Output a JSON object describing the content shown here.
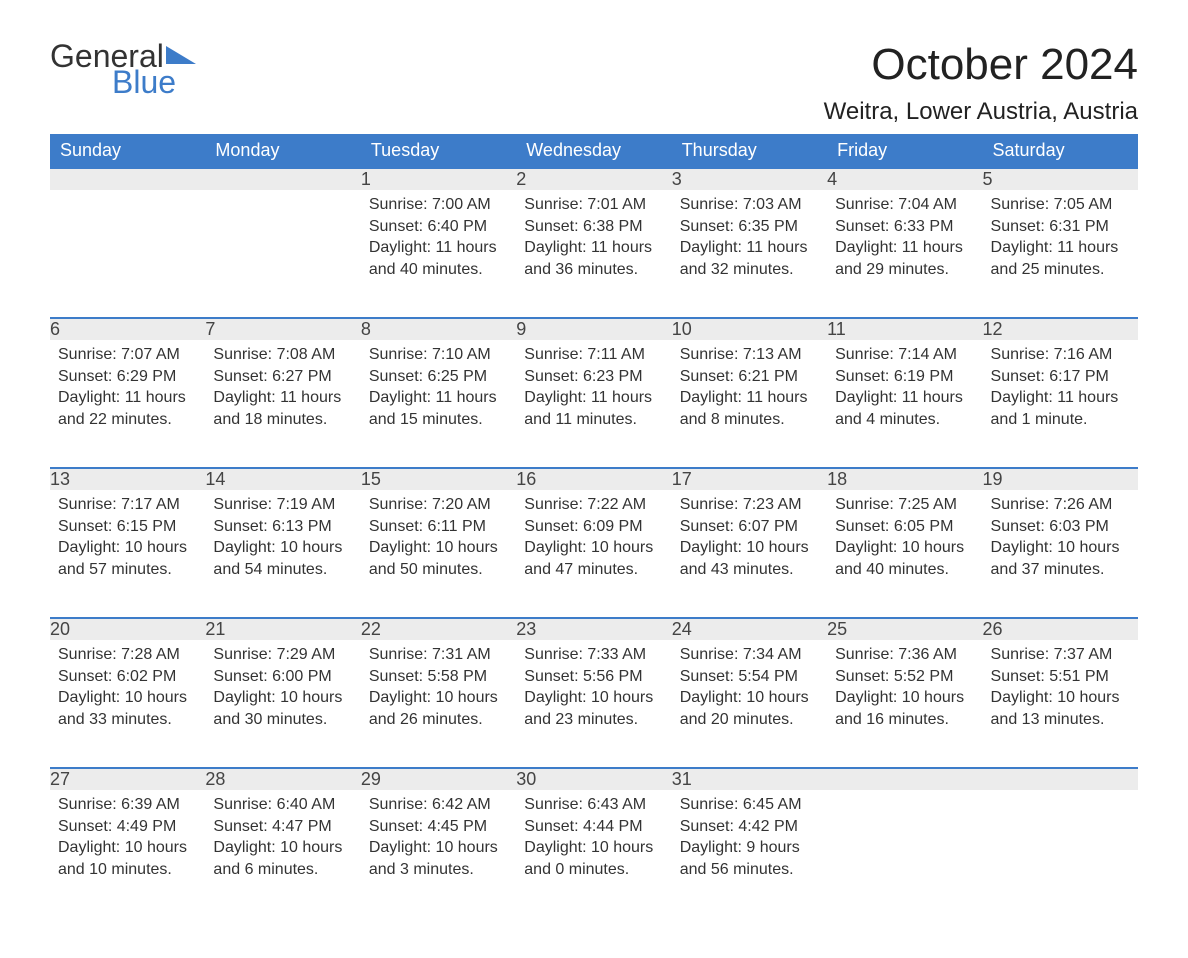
{
  "brand": {
    "line1": "General",
    "line2": "Blue",
    "text_color": "#333333",
    "accent_color": "#3d7cc9"
  },
  "title": "October 2024",
  "location": "Weitra, Lower Austria, Austria",
  "colors": {
    "header_bg": "#3d7cc9",
    "header_text": "#ffffff",
    "daynum_bg": "#ececec",
    "daynum_border": "#3d7cc9",
    "body_text": "#333333",
    "background": "#ffffff"
  },
  "typography": {
    "title_pt": 44,
    "location_pt": 24,
    "header_pt": 18,
    "cell_pt": 16
  },
  "weekdays": [
    "Sunday",
    "Monday",
    "Tuesday",
    "Wednesday",
    "Thursday",
    "Friday",
    "Saturday"
  ],
  "weeks": [
    [
      null,
      null,
      {
        "n": "1",
        "sunrise": "Sunrise: 7:00 AM",
        "sunset": "Sunset: 6:40 PM",
        "day1": "Daylight: 11 hours",
        "day2": "and 40 minutes."
      },
      {
        "n": "2",
        "sunrise": "Sunrise: 7:01 AM",
        "sunset": "Sunset: 6:38 PM",
        "day1": "Daylight: 11 hours",
        "day2": "and 36 minutes."
      },
      {
        "n": "3",
        "sunrise": "Sunrise: 7:03 AM",
        "sunset": "Sunset: 6:35 PM",
        "day1": "Daylight: 11 hours",
        "day2": "and 32 minutes."
      },
      {
        "n": "4",
        "sunrise": "Sunrise: 7:04 AM",
        "sunset": "Sunset: 6:33 PM",
        "day1": "Daylight: 11 hours",
        "day2": "and 29 minutes."
      },
      {
        "n": "5",
        "sunrise": "Sunrise: 7:05 AM",
        "sunset": "Sunset: 6:31 PM",
        "day1": "Daylight: 11 hours",
        "day2": "and 25 minutes."
      }
    ],
    [
      {
        "n": "6",
        "sunrise": "Sunrise: 7:07 AM",
        "sunset": "Sunset: 6:29 PM",
        "day1": "Daylight: 11 hours",
        "day2": "and 22 minutes."
      },
      {
        "n": "7",
        "sunrise": "Sunrise: 7:08 AM",
        "sunset": "Sunset: 6:27 PM",
        "day1": "Daylight: 11 hours",
        "day2": "and 18 minutes."
      },
      {
        "n": "8",
        "sunrise": "Sunrise: 7:10 AM",
        "sunset": "Sunset: 6:25 PM",
        "day1": "Daylight: 11 hours",
        "day2": "and 15 minutes."
      },
      {
        "n": "9",
        "sunrise": "Sunrise: 7:11 AM",
        "sunset": "Sunset: 6:23 PM",
        "day1": "Daylight: 11 hours",
        "day2": "and 11 minutes."
      },
      {
        "n": "10",
        "sunrise": "Sunrise: 7:13 AM",
        "sunset": "Sunset: 6:21 PM",
        "day1": "Daylight: 11 hours",
        "day2": "and 8 minutes."
      },
      {
        "n": "11",
        "sunrise": "Sunrise: 7:14 AM",
        "sunset": "Sunset: 6:19 PM",
        "day1": "Daylight: 11 hours",
        "day2": "and 4 minutes."
      },
      {
        "n": "12",
        "sunrise": "Sunrise: 7:16 AM",
        "sunset": "Sunset: 6:17 PM",
        "day1": "Daylight: 11 hours",
        "day2": "and 1 minute."
      }
    ],
    [
      {
        "n": "13",
        "sunrise": "Sunrise: 7:17 AM",
        "sunset": "Sunset: 6:15 PM",
        "day1": "Daylight: 10 hours",
        "day2": "and 57 minutes."
      },
      {
        "n": "14",
        "sunrise": "Sunrise: 7:19 AM",
        "sunset": "Sunset: 6:13 PM",
        "day1": "Daylight: 10 hours",
        "day2": "and 54 minutes."
      },
      {
        "n": "15",
        "sunrise": "Sunrise: 7:20 AM",
        "sunset": "Sunset: 6:11 PM",
        "day1": "Daylight: 10 hours",
        "day2": "and 50 minutes."
      },
      {
        "n": "16",
        "sunrise": "Sunrise: 7:22 AM",
        "sunset": "Sunset: 6:09 PM",
        "day1": "Daylight: 10 hours",
        "day2": "and 47 minutes."
      },
      {
        "n": "17",
        "sunrise": "Sunrise: 7:23 AM",
        "sunset": "Sunset: 6:07 PM",
        "day1": "Daylight: 10 hours",
        "day2": "and 43 minutes."
      },
      {
        "n": "18",
        "sunrise": "Sunrise: 7:25 AM",
        "sunset": "Sunset: 6:05 PM",
        "day1": "Daylight: 10 hours",
        "day2": "and 40 minutes."
      },
      {
        "n": "19",
        "sunrise": "Sunrise: 7:26 AM",
        "sunset": "Sunset: 6:03 PM",
        "day1": "Daylight: 10 hours",
        "day2": "and 37 minutes."
      }
    ],
    [
      {
        "n": "20",
        "sunrise": "Sunrise: 7:28 AM",
        "sunset": "Sunset: 6:02 PM",
        "day1": "Daylight: 10 hours",
        "day2": "and 33 minutes."
      },
      {
        "n": "21",
        "sunrise": "Sunrise: 7:29 AM",
        "sunset": "Sunset: 6:00 PM",
        "day1": "Daylight: 10 hours",
        "day2": "and 30 minutes."
      },
      {
        "n": "22",
        "sunrise": "Sunrise: 7:31 AM",
        "sunset": "Sunset: 5:58 PM",
        "day1": "Daylight: 10 hours",
        "day2": "and 26 minutes."
      },
      {
        "n": "23",
        "sunrise": "Sunrise: 7:33 AM",
        "sunset": "Sunset: 5:56 PM",
        "day1": "Daylight: 10 hours",
        "day2": "and 23 minutes."
      },
      {
        "n": "24",
        "sunrise": "Sunrise: 7:34 AM",
        "sunset": "Sunset: 5:54 PM",
        "day1": "Daylight: 10 hours",
        "day2": "and 20 minutes."
      },
      {
        "n": "25",
        "sunrise": "Sunrise: 7:36 AM",
        "sunset": "Sunset: 5:52 PM",
        "day1": "Daylight: 10 hours",
        "day2": "and 16 minutes."
      },
      {
        "n": "26",
        "sunrise": "Sunrise: 7:37 AM",
        "sunset": "Sunset: 5:51 PM",
        "day1": "Daylight: 10 hours",
        "day2": "and 13 minutes."
      }
    ],
    [
      {
        "n": "27",
        "sunrise": "Sunrise: 6:39 AM",
        "sunset": "Sunset: 4:49 PM",
        "day1": "Daylight: 10 hours",
        "day2": "and 10 minutes."
      },
      {
        "n": "28",
        "sunrise": "Sunrise: 6:40 AM",
        "sunset": "Sunset: 4:47 PM",
        "day1": "Daylight: 10 hours",
        "day2": "and 6 minutes."
      },
      {
        "n": "29",
        "sunrise": "Sunrise: 6:42 AM",
        "sunset": "Sunset: 4:45 PM",
        "day1": "Daylight: 10 hours",
        "day2": "and 3 minutes."
      },
      {
        "n": "30",
        "sunrise": "Sunrise: 6:43 AM",
        "sunset": "Sunset: 4:44 PM",
        "day1": "Daylight: 10 hours",
        "day2": "and 0 minutes."
      },
      {
        "n": "31",
        "sunrise": "Sunrise: 6:45 AM",
        "sunset": "Sunset: 4:42 PM",
        "day1": "Daylight: 9 hours",
        "day2": "and 56 minutes."
      },
      null,
      null
    ]
  ]
}
